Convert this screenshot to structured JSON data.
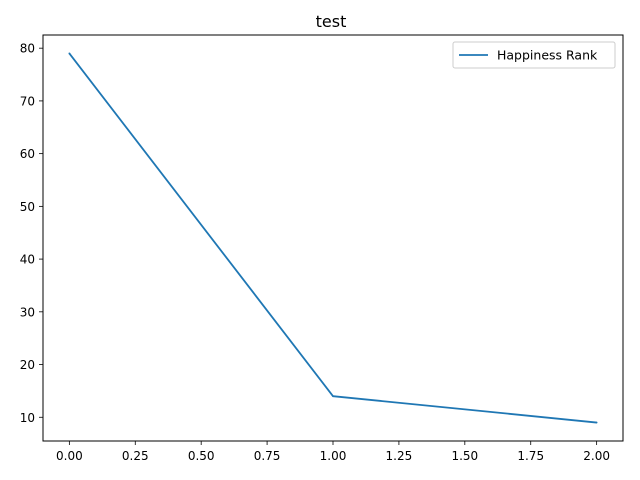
{
  "chart_data": {
    "type": "line",
    "title": "test",
    "xlabel": "",
    "ylabel": "",
    "x": [
      0,
      1,
      2
    ],
    "series": [
      {
        "name": "Happiness Rank",
        "values": [
          79,
          14,
          9
        ],
        "color": "#1f77b4"
      }
    ],
    "xlim": [
      -0.1,
      2.1
    ],
    "ylim": [
      5.5,
      82.5
    ],
    "xticks": [
      0.0,
      0.25,
      0.5,
      0.75,
      1.0,
      1.25,
      1.5,
      1.75,
      2.0
    ],
    "xtick_labels": [
      "0.00",
      "0.25",
      "0.50",
      "0.75",
      "1.00",
      "1.25",
      "1.50",
      "1.75",
      "2.00"
    ],
    "yticks": [
      10,
      20,
      30,
      40,
      50,
      60,
      70,
      80
    ],
    "ytick_labels": [
      "10",
      "20",
      "30",
      "40",
      "50",
      "60",
      "70",
      "80"
    ],
    "grid": false,
    "legend_position": "top-right"
  }
}
